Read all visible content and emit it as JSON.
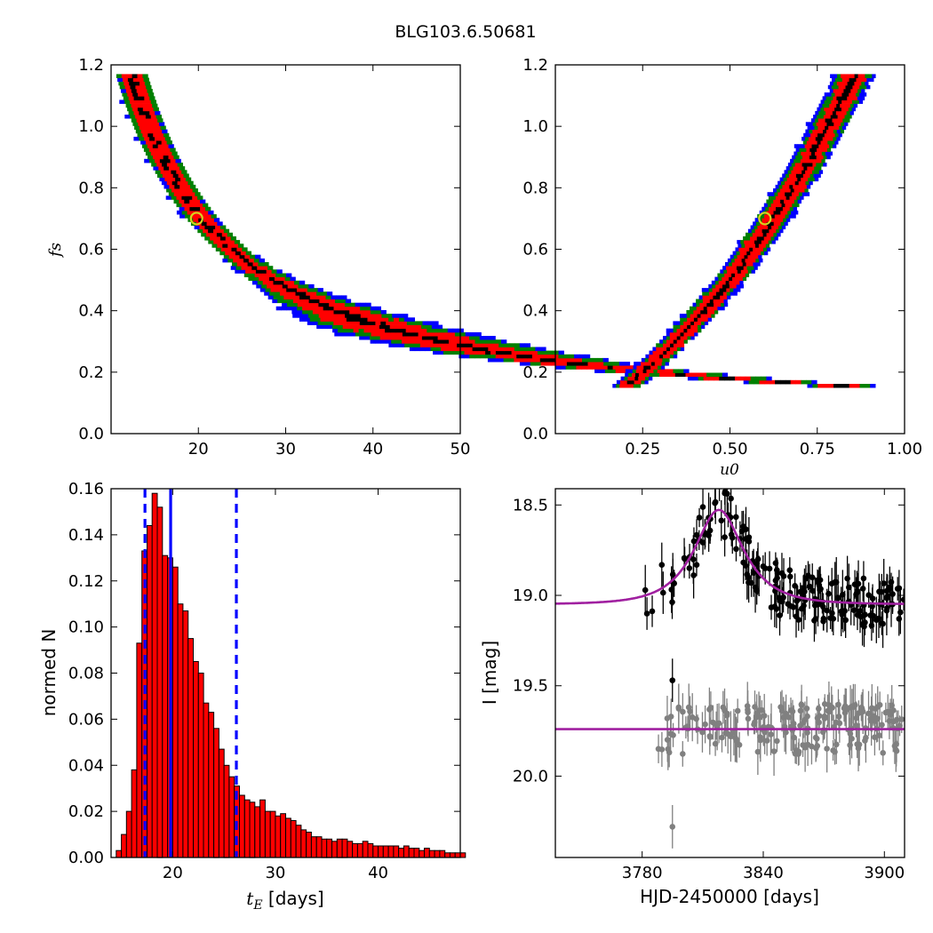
{
  "figure": {
    "title": "BLG103.6.50681"
  },
  "chart_data": [
    {
      "id": "panel_tE_fs",
      "type": "heatmap",
      "title": "",
      "xlabel": "",
      "ylabel": "f_s",
      "ylabel_display": "fs",
      "xlim": [
        10,
        50
      ],
      "ylim": [
        0,
        1.2
      ],
      "xticks": [
        20,
        30,
        40,
        50
      ],
      "yticks": [
        0.0,
        0.2,
        0.4,
        0.6,
        0.8,
        1.0,
        1.2
      ],
      "ytick_labels": [
        "0.0",
        "0.2",
        "0.4",
        "0.6",
        "0.8",
        "1.0",
        "1.2"
      ],
      "contour_levels": [
        {
          "level": "core",
          "color": "#000000"
        },
        {
          "level": "1",
          "color": "#ff0000"
        },
        {
          "level": "2",
          "color": "#008000"
        },
        {
          "level": "3",
          "color": "#0000ff"
        }
      ],
      "band_relation": "f_s * t_E ≈ 14",
      "band_constant": 14,
      "fs_range": [
        0.15,
        1.16
      ],
      "best_fit": {
        "x": 19.8,
        "y": 0.7,
        "marker_color": "#d4d420"
      }
    },
    {
      "id": "panel_u0_fs",
      "type": "heatmap",
      "title": "",
      "xlabel": "u_0",
      "xlabel_display": "u0",
      "ylabel": "",
      "xlim": [
        0,
        1.0
      ],
      "ylim": [
        0,
        1.2
      ],
      "xticks": [
        0.25,
        0.5,
        0.75,
        1.0
      ],
      "xtick_labels": [
        "0.25",
        "0.50",
        "0.75",
        "1.00"
      ],
      "yticks": [
        0.0,
        0.2,
        0.4,
        0.6,
        0.8,
        1.0,
        1.2
      ],
      "ytick_labels": [
        "0.0",
        "0.2",
        "0.4",
        "0.6",
        "0.8",
        "1.0",
        "1.2"
      ],
      "band_points": [
        [
          0.2,
          0.15
        ],
        [
          0.3,
          0.25
        ],
        [
          0.4,
          0.37
        ],
        [
          0.5,
          0.5
        ],
        [
          0.6,
          0.66
        ],
        [
          0.7,
          0.84
        ],
        [
          0.8,
          1.05
        ],
        [
          0.85,
          1.16
        ]
      ],
      "best_fit": {
        "x": 0.6,
        "y": 0.7,
        "marker_color": "#d4d420"
      }
    },
    {
      "id": "panel_tE_hist",
      "type": "bar",
      "title": "",
      "xlabel": "t_E [days]",
      "xlabel_math": "t",
      "xlabel_sub": "E",
      "xlabel_rest": " [days]",
      "ylabel": "normed N",
      "xlim": [
        14,
        48
      ],
      "ylim": [
        0,
        0.16
      ],
      "xticks": [
        20,
        30,
        40
      ],
      "yticks": [
        0.0,
        0.02,
        0.04,
        0.06,
        0.08,
        0.1,
        0.12,
        0.14,
        0.16
      ],
      "ytick_labels": [
        "0.00",
        "0.02",
        "0.04",
        "0.06",
        "0.08",
        "0.10",
        "0.12",
        "0.14",
        "0.16"
      ],
      "bin_start": 14.5,
      "bin_width": 0.5,
      "values": [
        0.003,
        0.01,
        0.02,
        0.038,
        0.093,
        0.133,
        0.144,
        0.158,
        0.152,
        0.131,
        0.13,
        0.126,
        0.11,
        0.107,
        0.095,
        0.085,
        0.08,
        0.067,
        0.063,
        0.056,
        0.047,
        0.04,
        0.035,
        0.031,
        0.027,
        0.025,
        0.024,
        0.022,
        0.025,
        0.02,
        0.02,
        0.018,
        0.019,
        0.017,
        0.016,
        0.014,
        0.012,
        0.011,
        0.009,
        0.009,
        0.008,
        0.008,
        0.007,
        0.008,
        0.008,
        0.007,
        0.006,
        0.006,
        0.007,
        0.006,
        0.005,
        0.005,
        0.005,
        0.005,
        0.005,
        0.004,
        0.005,
        0.004,
        0.004,
        0.003,
        0.004,
        0.003,
        0.003,
        0.003,
        0.002,
        0.002,
        0.002,
        0.002
      ],
      "bar_color": "#ff0000",
      "vlines": [
        {
          "x": 17.3,
          "style": "dashed",
          "color": "#0000ff"
        },
        {
          "x": 19.8,
          "style": "solid",
          "color": "#0000ff"
        },
        {
          "x": 26.2,
          "style": "dashed",
          "color": "#0000ff"
        }
      ]
    },
    {
      "id": "panel_lightcurve",
      "type": "scatter",
      "title": "",
      "xlabel": "HJD-2450000 [days]",
      "ylabel": "I [mag]",
      "xlim": [
        3737,
        3910
      ],
      "ylim": [
        20.45,
        18.41
      ],
      "y_inverted": true,
      "xticks": [
        3780,
        3840,
        3900
      ],
      "yticks": [
        18.5,
        19.0,
        19.5,
        20.0
      ],
      "ytick_labels": [
        "18.5",
        "19.0",
        "19.5",
        "20.0"
      ],
      "model": {
        "baseline": 19.05,
        "peak_mag": 18.52,
        "t0": 3818,
        "tE": 19.8,
        "u0": 0.6,
        "fs": 0.7,
        "color": "#a020a0"
      },
      "residual_baseline": 19.74,
      "series": [
        {
          "role": "data",
          "color": "#000000",
          "observing_season": [
            3780,
            3910
          ]
        },
        {
          "role": "residuals",
          "color": "#808080",
          "observing_season": [
            3780,
            3910
          ]
        }
      ],
      "outliers": [
        {
          "x": 3795,
          "y": 19.47,
          "color": "#000000"
        },
        {
          "x": 3795,
          "y": 20.28,
          "color": "#808080"
        }
      ]
    }
  ]
}
